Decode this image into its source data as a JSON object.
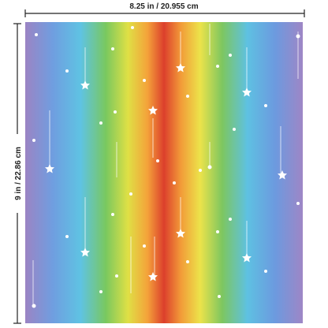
{
  "dimensions": {
    "width": "8.25 in / 20.955 cm",
    "height": "9 in / 22.86 cm"
  }
}
